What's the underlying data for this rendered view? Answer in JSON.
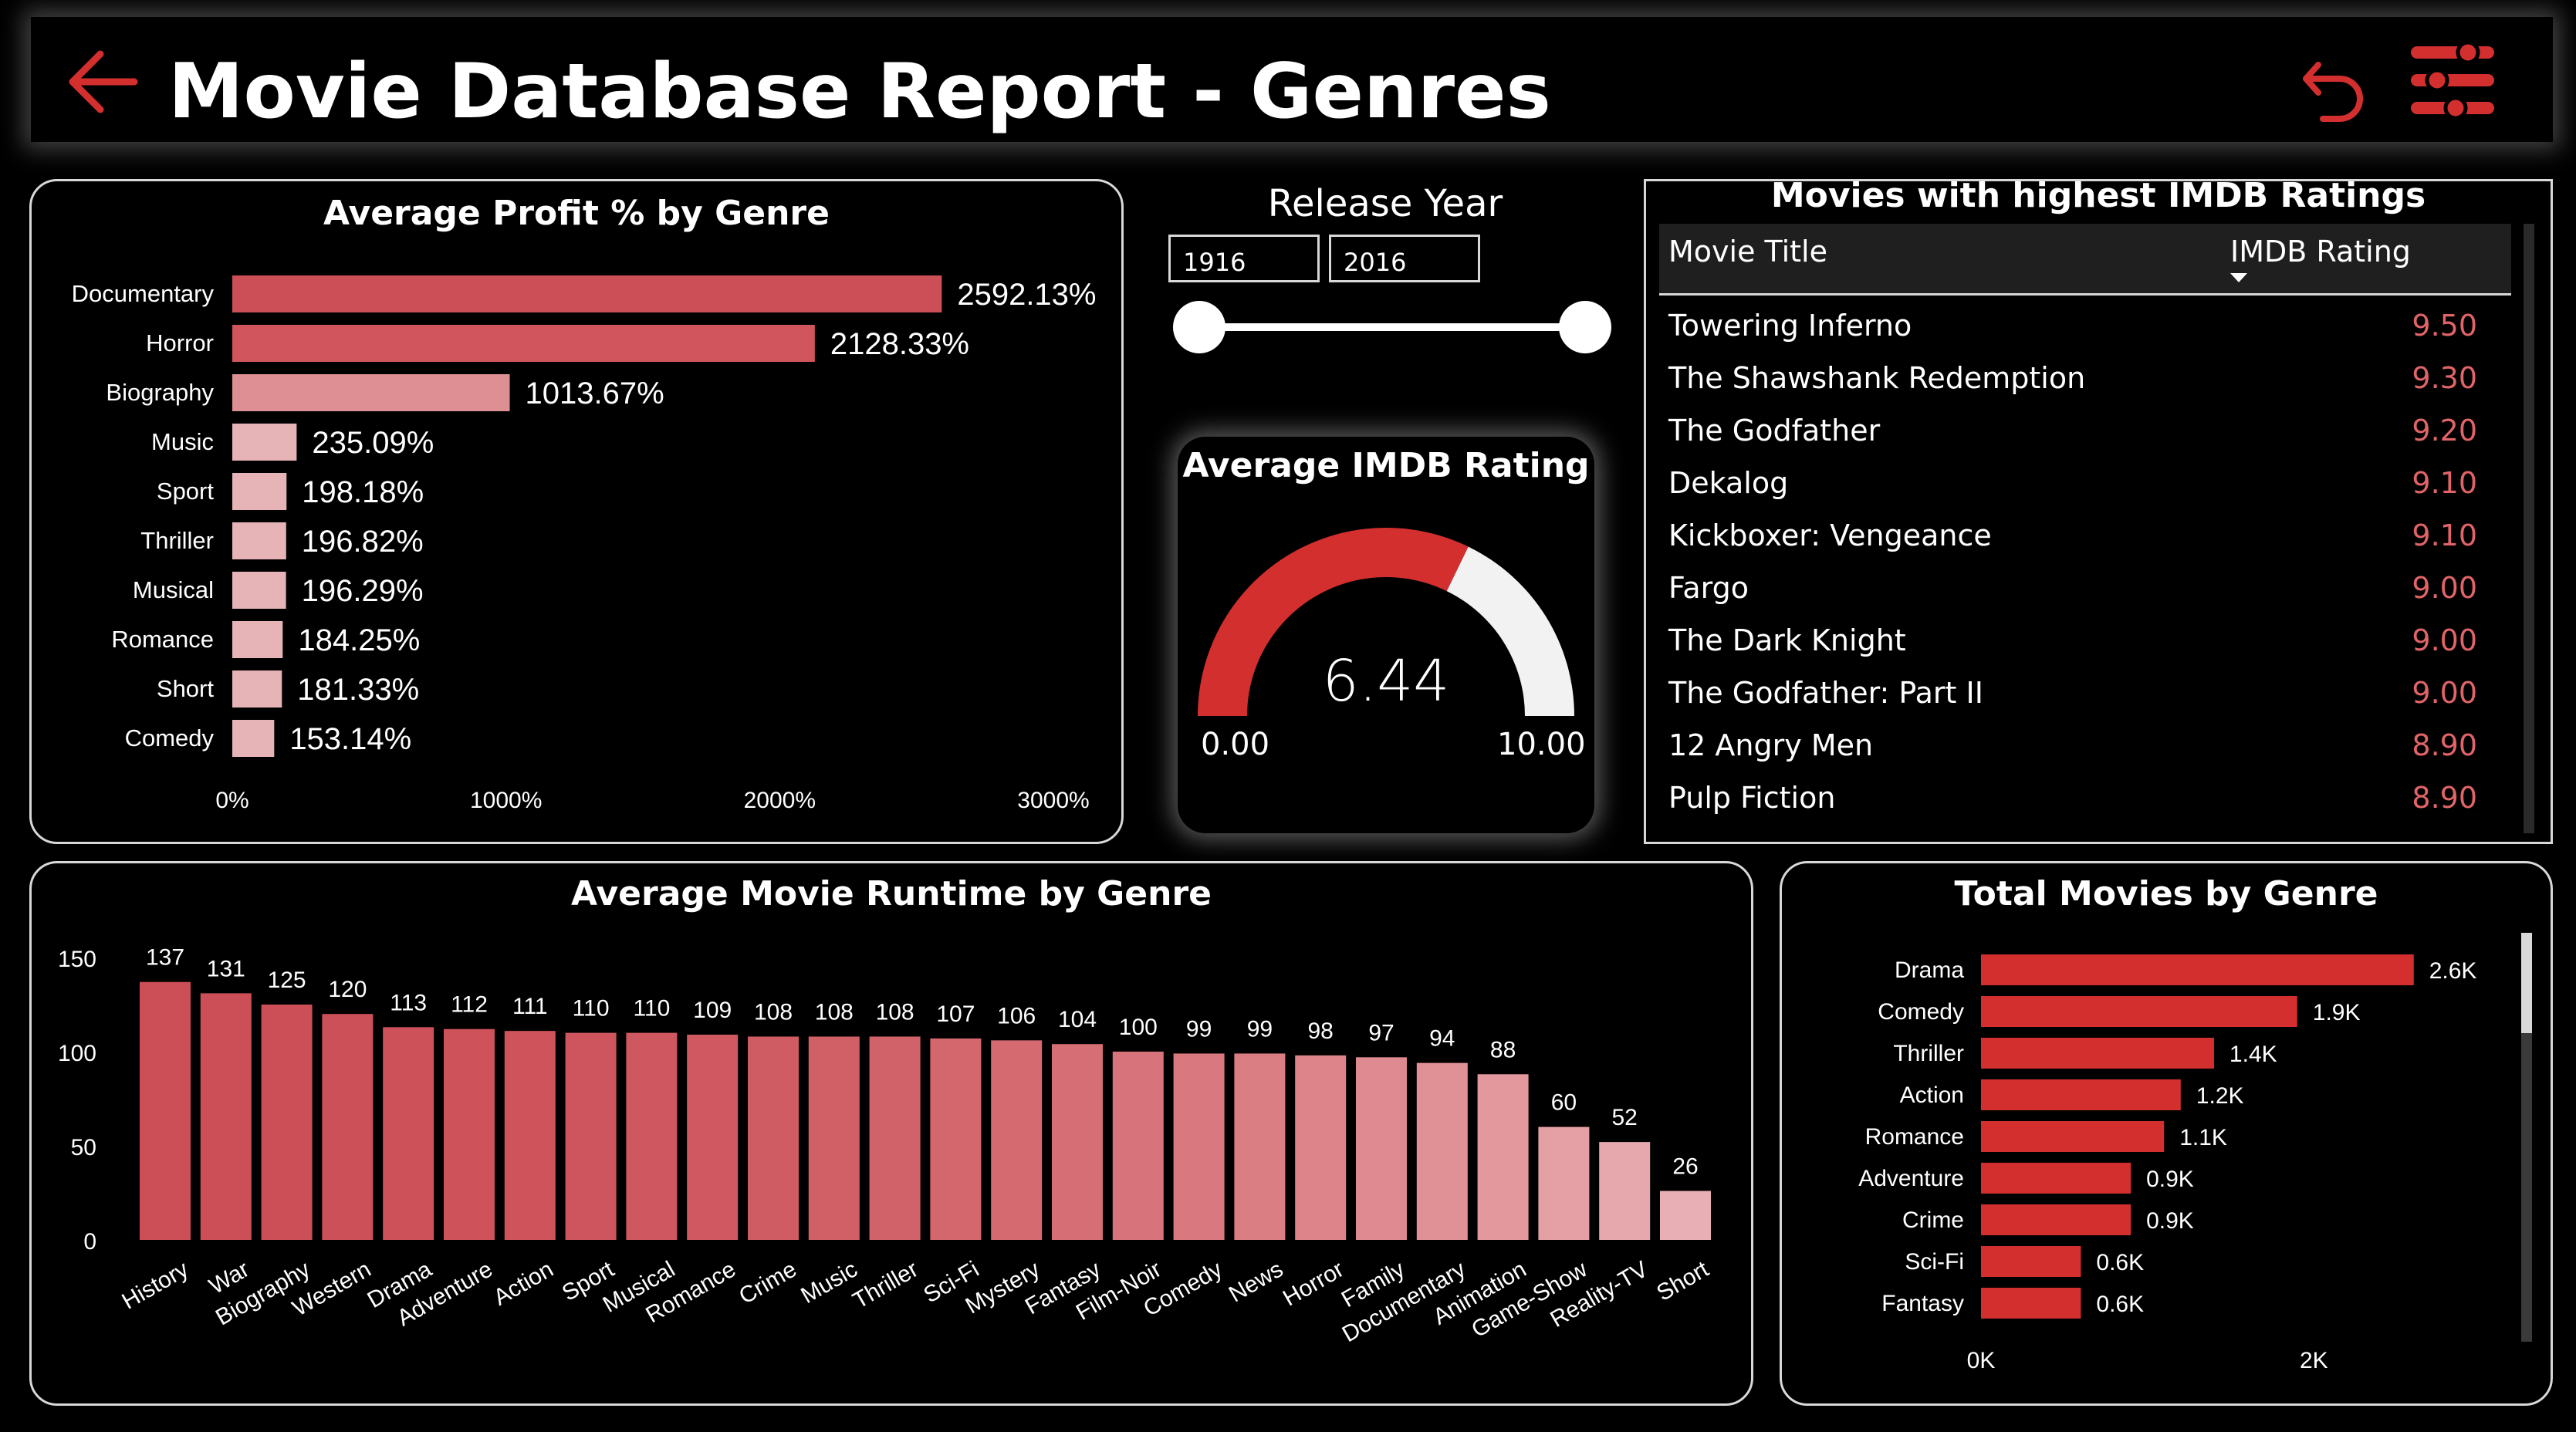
{
  "header": {
    "title": "Movie Database Report - Genres",
    "back_icon": "arrow-left-icon",
    "undo_icon": "undo-arrow-icon",
    "filter_icon": "sliders-icon",
    "accent": "#d32f2f"
  },
  "profit_chart": {
    "chart_data": {
      "type": "bar",
      "orientation": "horizontal",
      "title": "Average Profit % by Genre",
      "categories": [
        "Documentary",
        "Horror",
        "Biography",
        "Music",
        "Sport",
        "Thriller",
        "Musical",
        "Romance",
        "Short",
        "Comedy"
      ],
      "values": [
        2592.13,
        2128.33,
        1013.67,
        235.09,
        198.18,
        196.82,
        196.29,
        184.25,
        181.33,
        153.14
      ],
      "labels": [
        "2592.13%",
        "2128.33%",
        "1013.67%",
        "235.09%",
        "198.18%",
        "196.82%",
        "196.29%",
        "184.25%",
        "181.33%",
        "153.14%"
      ],
      "xlim": [
        0,
        3000
      ],
      "ticks": [
        "0%",
        "1000%",
        "2000%",
        "3000%"
      ],
      "colors": [
        "#cc4f57",
        "#d0555d",
        "#de8f93",
        "#e6b3b6",
        "#e6b3b6",
        "#e6b3b6",
        "#e6b3b6",
        "#e6b3b6",
        "#e6b3b6",
        "#e6b3b6"
      ]
    }
  },
  "slicer": {
    "title": "Release Year",
    "start": "1916",
    "end": "2016"
  },
  "gauge": {
    "title": "Average IMDB Rating",
    "value": 6.44,
    "value_label": "6.44",
    "min_label": "0.00",
    "max_label": "10.00",
    "min": 0,
    "max": 10,
    "fill_color": "#d32f2f",
    "track_color": "#f2f2f2"
  },
  "imdb_table": {
    "title": "Movies with highest IMDB Ratings",
    "col_title": "Movie Title",
    "col_rating": "IMDB Rating",
    "sort_icon": "caret-down-icon",
    "rows": [
      {
        "title": "Towering Inferno",
        "rating": "9.50"
      },
      {
        "title": "The Shawshank Redemption",
        "rating": "9.30"
      },
      {
        "title": "The Godfather",
        "rating": "9.20"
      },
      {
        "title": "Dekalog",
        "rating": "9.10"
      },
      {
        "title": "Kickboxer: Vengeance",
        "rating": "9.10"
      },
      {
        "title": "Fargo",
        "rating": "9.00"
      },
      {
        "title": "The Dark Knight",
        "rating": "9.00"
      },
      {
        "title": "The Godfather: Part II",
        "rating": "9.00"
      },
      {
        "title": "12 Angry Men",
        "rating": "8.90"
      },
      {
        "title": "Pulp Fiction",
        "rating": "8.90"
      }
    ]
  },
  "runtime_chart": {
    "chart_data": {
      "type": "bar",
      "title": "Average Movie Runtime by Genre",
      "categories": [
        "History",
        "War",
        "Biography",
        "Western",
        "Drama",
        "Adventure",
        "Action",
        "Sport",
        "Musical",
        "Romance",
        "Crime",
        "Music",
        "Thriller",
        "Sci-Fi",
        "Mystery",
        "Fantasy",
        "Film-Noir",
        "Comedy",
        "News",
        "Horror",
        "Family",
        "Documentary",
        "Animation",
        "Game-Show",
        "Reality-TV",
        "Short"
      ],
      "values": [
        137,
        131,
        125,
        120,
        113,
        112,
        111,
        110,
        110,
        109,
        108,
        108,
        108,
        107,
        106,
        104,
        100,
        99,
        99,
        98,
        97,
        94,
        88,
        60,
        52,
        26
      ],
      "ylim": [
        0,
        150
      ],
      "yticks": [
        "0",
        "50",
        "100",
        "150"
      ]
    }
  },
  "total_chart": {
    "chart_data": {
      "type": "bar",
      "orientation": "horizontal",
      "title": "Total Movies by Genre",
      "categories": [
        "Drama",
        "Comedy",
        "Thriller",
        "Action",
        "Romance",
        "Adventure",
        "Crime",
        "Sci-Fi",
        "Fantasy"
      ],
      "values": [
        2600,
        1900,
        1400,
        1200,
        1100,
        900,
        900,
        600,
        600
      ],
      "labels": [
        "2.6K",
        "1.9K",
        "1.4K",
        "1.2K",
        "1.1K",
        "0.9K",
        "0.9K",
        "0.6K",
        "0.6K"
      ],
      "xlim": [
        0,
        3000
      ],
      "ticks": [
        "0K",
        "2K"
      ],
      "color": "#d32f2f"
    }
  }
}
